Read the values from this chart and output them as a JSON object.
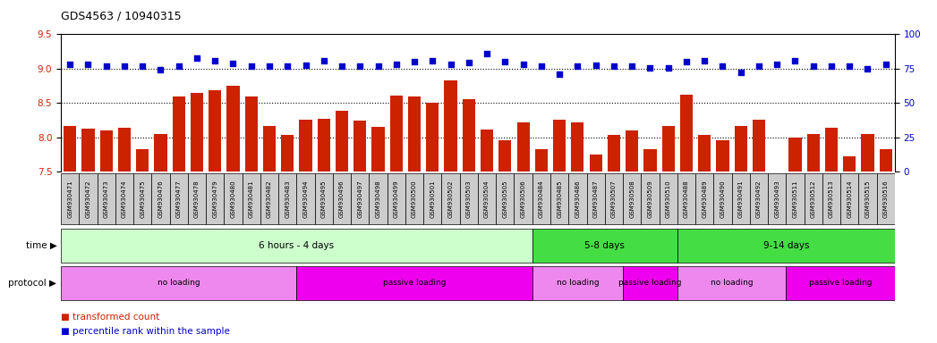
{
  "title": "GDS4563 / 10940315",
  "samples": [
    "GSM930471",
    "GSM930472",
    "GSM930473",
    "GSM930474",
    "GSM930475",
    "GSM930476",
    "GSM930477",
    "GSM930478",
    "GSM930479",
    "GSM930480",
    "GSM930481",
    "GSM930482",
    "GSM930483",
    "GSM930494",
    "GSM930495",
    "GSM930496",
    "GSM930497",
    "GSM930498",
    "GSM930499",
    "GSM930500",
    "GSM930501",
    "GSM930502",
    "GSM930503",
    "GSM930504",
    "GSM930505",
    "GSM930506",
    "GSM930484",
    "GSM930485",
    "GSM930486",
    "GSM930487",
    "GSM930507",
    "GSM930508",
    "GSM930509",
    "GSM930510",
    "GSM930488",
    "GSM930489",
    "GSM930490",
    "GSM930491",
    "GSM930492",
    "GSM930493",
    "GSM930511",
    "GSM930512",
    "GSM930513",
    "GSM930514",
    "GSM930515",
    "GSM930516"
  ],
  "bar_values": [
    8.17,
    8.12,
    8.1,
    8.14,
    7.82,
    8.05,
    8.6,
    8.65,
    8.68,
    8.75,
    8.6,
    8.17,
    8.04,
    8.25,
    8.27,
    8.39,
    8.24,
    8.15,
    8.61,
    8.6,
    8.5,
    8.83,
    8.55,
    8.11,
    7.95,
    8.22,
    7.82,
    8.26,
    8.22,
    7.75,
    8.04,
    8.1,
    7.82,
    8.16,
    8.62,
    8.03,
    7.95,
    8.17,
    8.25,
    7.5,
    8.0,
    8.05,
    8.14,
    7.72,
    8.05,
    7.82
  ],
  "dot_values": [
    9.06,
    9.06,
    9.04,
    9.04,
    9.04,
    8.99,
    9.04,
    9.15,
    9.12,
    9.08,
    9.04,
    9.03,
    9.03,
    9.05,
    9.12,
    9.03,
    9.04,
    9.04,
    9.06,
    9.1,
    9.12,
    9.06,
    9.09,
    9.22,
    9.1,
    9.06,
    9.04,
    8.92,
    9.04,
    9.05,
    9.04,
    9.04,
    9.01,
    9.01,
    9.1,
    9.11,
    9.03,
    8.95,
    9.03,
    9.06,
    9.11,
    9.03,
    9.03,
    9.03,
    9.0,
    9.06
  ],
  "ylim": [
    7.5,
    9.5
  ],
  "yticks_left": [
    7.5,
    8.0,
    8.5,
    9.0,
    9.5
  ],
  "yticks_right": [
    0,
    25,
    50,
    75,
    100
  ],
  "bar_color": "#CC2200",
  "dot_color": "#0000CC",
  "time_groups": [
    {
      "label": "6 hours - 4 days",
      "start": 0,
      "end": 26,
      "color": "#CCFFCC"
    },
    {
      "label": "5-8 days",
      "start": 26,
      "end": 34,
      "color": "#44DD44"
    },
    {
      "label": "9-14 days",
      "start": 34,
      "end": 46,
      "color": "#44DD44"
    }
  ],
  "protocol_groups": [
    {
      "label": "no loading",
      "start": 0,
      "end": 13,
      "color": "#EE88EE"
    },
    {
      "label": "passive loading",
      "start": 13,
      "end": 26,
      "color": "#EE00EE"
    },
    {
      "label": "no loading",
      "start": 26,
      "end": 31,
      "color": "#EE88EE"
    },
    {
      "label": "passive loading",
      "start": 31,
      "end": 34,
      "color": "#EE00EE"
    },
    {
      "label": "no loading",
      "start": 34,
      "end": 40,
      "color": "#EE88EE"
    },
    {
      "label": "passive loading",
      "start": 40,
      "end": 46,
      "color": "#EE00EE"
    }
  ],
  "time_label": "time",
  "protocol_label": "protocol",
  "legend_bar_label": "transformed count",
  "legend_dot_label": "percentile rank within the sample",
  "background_color": "#FFFFFF",
  "tick_label_color_left": "#CC2200",
  "tick_label_color_right": "#0000CC",
  "tick_bg_color": "#CCCCCC",
  "grid_dotted_color": "#000000"
}
